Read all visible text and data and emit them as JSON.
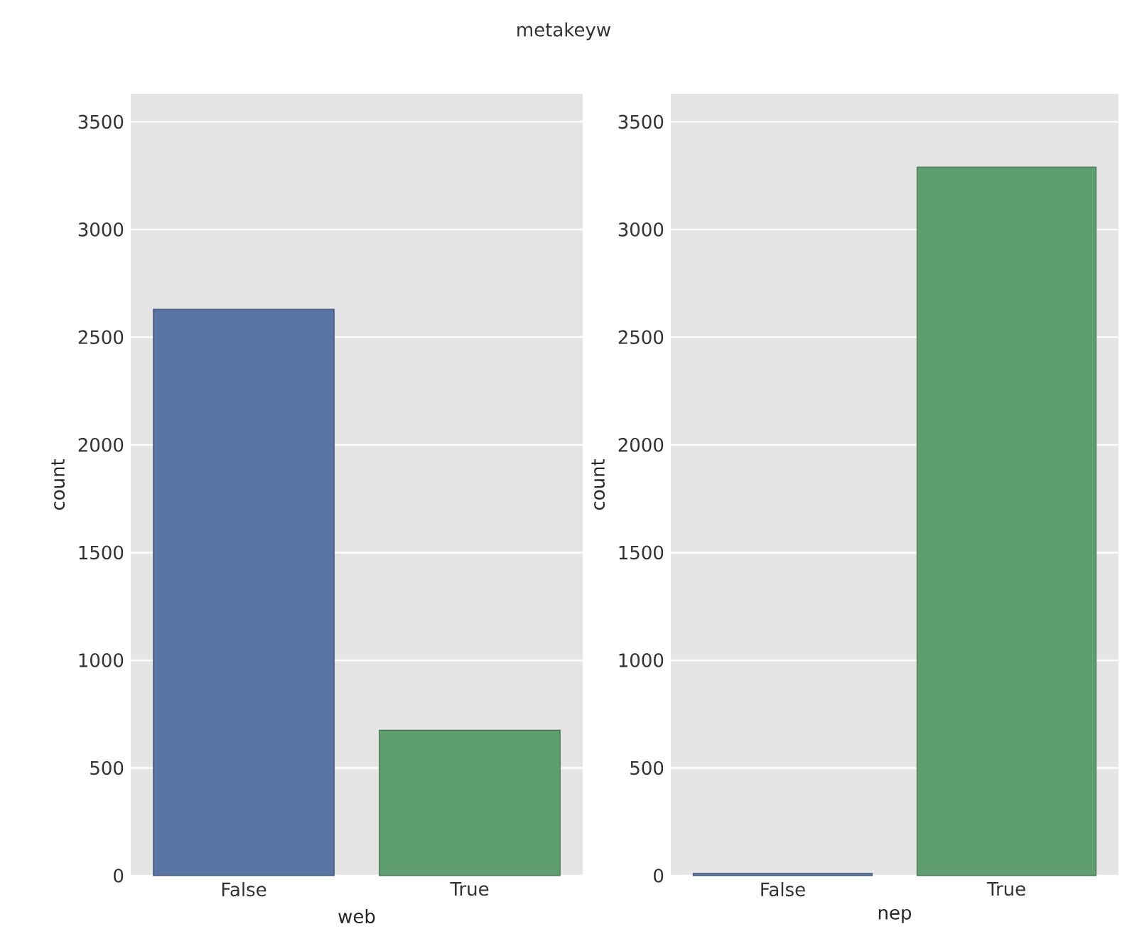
{
  "chart_data": [
    {
      "type": "bar",
      "title": "metakeyw",
      "categories": [
        "False",
        "True"
      ],
      "values": [
        2630,
        675
      ],
      "colors": [
        "#5975a4",
        "#5f9e6e"
      ],
      "xlabel": "web",
      "ylabel": "count",
      "ylim": [
        0,
        3630
      ],
      "yticks": [
        0,
        500,
        1000,
        1500,
        2000,
        2500,
        3000,
        3500
      ],
      "grid": "y"
    },
    {
      "type": "bar",
      "categories": [
        "False",
        "True"
      ],
      "values": [
        10,
        3290
      ],
      "colors": [
        "#5975a4",
        "#5f9e6e"
      ],
      "xlabel": "nep",
      "ylabel": "count",
      "ylim": [
        0,
        3630
      ],
      "yticks": [
        0,
        500,
        1000,
        1500,
        2000,
        2500,
        3000,
        3500
      ],
      "grid": "y"
    }
  ]
}
